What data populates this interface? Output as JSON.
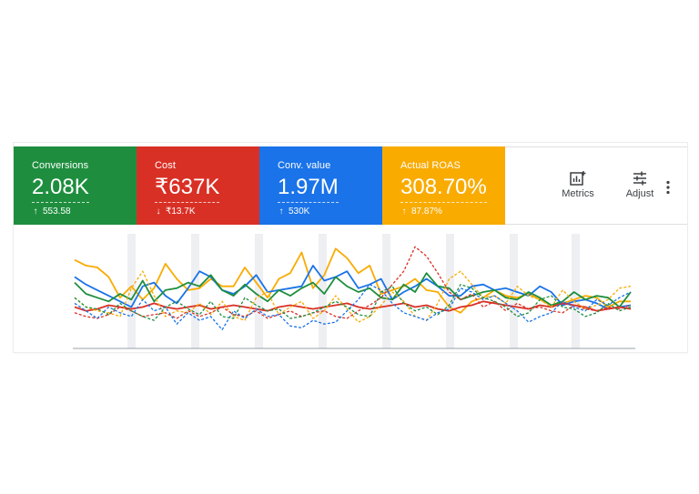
{
  "scorecards": [
    {
      "label": "Conversions",
      "value": "2.08K",
      "change": "553.58",
      "direction": "up",
      "color": "#1e8e3e"
    },
    {
      "label": "Cost",
      "value": "₹637K",
      "change": "₹13.7K",
      "direction": "down",
      "color": "#d93025"
    },
    {
      "label": "Conv. value",
      "value": "1.97M",
      "change": "530K",
      "direction": "up",
      "color": "#1a73e8"
    },
    {
      "label": "Actual ROAS",
      "value": "308.70%",
      "change": "87.87%",
      "direction": "up",
      "color": "#f9ab00"
    }
  ],
  "toolbar": {
    "metrics_label": "Metrics",
    "metrics_icon": "metrics-chart-icon",
    "adjust_label": "Adjust",
    "adjust_icon": "adjust-sliders-icon",
    "more_icon": "more-vert-icon"
  },
  "chart_data": {
    "type": "line",
    "x": [
      1,
      2,
      3,
      4,
      5,
      6,
      7,
      8,
      9,
      10,
      11,
      12,
      13,
      14,
      15,
      16,
      17,
      18,
      19,
      20,
      21,
      22,
      23,
      24,
      25,
      26,
      27,
      28,
      29,
      30,
      31,
      32,
      33,
      34,
      35,
      36,
      37,
      38,
      39,
      40,
      41,
      42,
      43,
      44,
      45,
      46,
      47,
      48,
      49,
      50
    ],
    "grid": false,
    "series": [
      {
        "color": "#f9ab00",
        "style": "solid",
        "values": [
          90,
          84,
          82,
          72,
          50,
          62,
          48,
          60,
          86,
          70,
          58,
          60,
          70,
          62,
          62,
          82,
          66,
          50,
          70,
          76,
          98,
          60,
          74,
          102,
          92,
          76,
          84,
          54,
          58,
          62,
          70,
          58,
          56,
          40,
          34,
          46,
          50,
          58,
          52,
          50,
          54,
          48,
          42,
          44,
          48,
          52,
          50,
          40,
          46,
          46
        ]
      },
      {
        "color": "#1a73e8",
        "style": "solid",
        "values": [
          72,
          64,
          58,
          52,
          46,
          40,
          62,
          66,
          52,
          44,
          60,
          78,
          72,
          58,
          54,
          62,
          74,
          56,
          58,
          60,
          62,
          84,
          68,
          72,
          78,
          60,
          64,
          70,
          48,
          56,
          62,
          70,
          62,
          52,
          52,
          62,
          64,
          58,
          60,
          56,
          52,
          62,
          56,
          42,
          46,
          48,
          44,
          38,
          40,
          42
        ]
      },
      {
        "color": "#1e8e3e",
        "style": "solid",
        "values": [
          66,
          54,
          50,
          46,
          54,
          48,
          68,
          46,
          58,
          60,
          66,
          62,
          74,
          58,
          52,
          64,
          54,
          46,
          58,
          52,
          60,
          66,
          54,
          72,
          62,
          56,
          60,
          50,
          48,
          64,
          56,
          76,
          62,
          60,
          48,
          52,
          56,
          58,
          50,
          48,
          56,
          50,
          42,
          46,
          56,
          48,
          52,
          50,
          40,
          56
        ]
      },
      {
        "color": "#d93025",
        "style": "solid",
        "values": [
          40,
          36,
          38,
          42,
          40,
          38,
          40,
          44,
          40,
          38,
          40,
          42,
          38,
          40,
          42,
          40,
          38,
          36,
          40,
          42,
          40,
          38,
          40,
          42,
          44,
          40,
          38,
          40,
          42,
          44,
          40,
          42,
          38,
          36,
          40,
          42,
          46,
          44,
          42,
          40,
          38,
          42,
          40,
          44,
          42,
          40,
          36,
          38,
          40,
          38
        ]
      },
      {
        "color": "#f9ab00",
        "style": "dashed",
        "values": [
          50,
          40,
          36,
          34,
          30,
          60,
          78,
          52,
          30,
          36,
          34,
          44,
          32,
          46,
          30,
          26,
          50,
          56,
          32,
          40,
          46,
          28,
          36,
          52,
          38,
          24,
          30,
          42,
          56,
          46,
          30,
          26,
          44,
          70,
          78,
          64,
          50,
          52,
          44,
          62,
          52,
          48,
          40,
          58,
          46,
          38,
          42,
          48,
          60,
          62
        ]
      },
      {
        "color": "#d93025",
        "style": "dashed",
        "values": [
          34,
          30,
          28,
          32,
          40,
          36,
          30,
          32,
          34,
          28,
          36,
          30,
          34,
          40,
          32,
          30,
          36,
          28,
          32,
          36,
          30,
          34,
          36,
          30,
          28,
          36,
          42,
          50,
          64,
          78,
          104,
          94,
          76,
          56,
          48,
          54,
          40,
          46,
          36,
          44,
          38,
          40,
          36,
          34,
          42,
          38,
          36,
          40,
          38,
          42
        ]
      },
      {
        "color": "#1a73e8",
        "style": "dashed",
        "values": [
          44,
          36,
          28,
          40,
          34,
          30,
          48,
          36,
          40,
          22,
          34,
          26,
          30,
          16,
          36,
          28,
          38,
          30,
          32,
          20,
          18,
          26,
          22,
          24,
          36,
          48,
          64,
          58,
          44,
          34,
          30,
          26,
          34,
          38,
          60,
          56,
          48,
          52,
          44,
          36,
          24,
          30,
          34,
          46,
          40,
          36,
          48,
          42,
          50,
          56
        ]
      },
      {
        "color": "#1e8e3e",
        "style": "dashed",
        "values": [
          50,
          40,
          38,
          32,
          44,
          36,
          30,
          26,
          40,
          46,
          38,
          32,
          46,
          30,
          28,
          50,
          42,
          36,
          38,
          28,
          30,
          34,
          40,
          46,
          40,
          32,
          30,
          56,
          62,
          44,
          36,
          40,
          32,
          42,
          64,
          60,
          50,
          46,
          40,
          30,
          34,
          48,
          52,
          40,
          38,
          30,
          34,
          44,
          36,
          40
        ]
      }
    ]
  }
}
